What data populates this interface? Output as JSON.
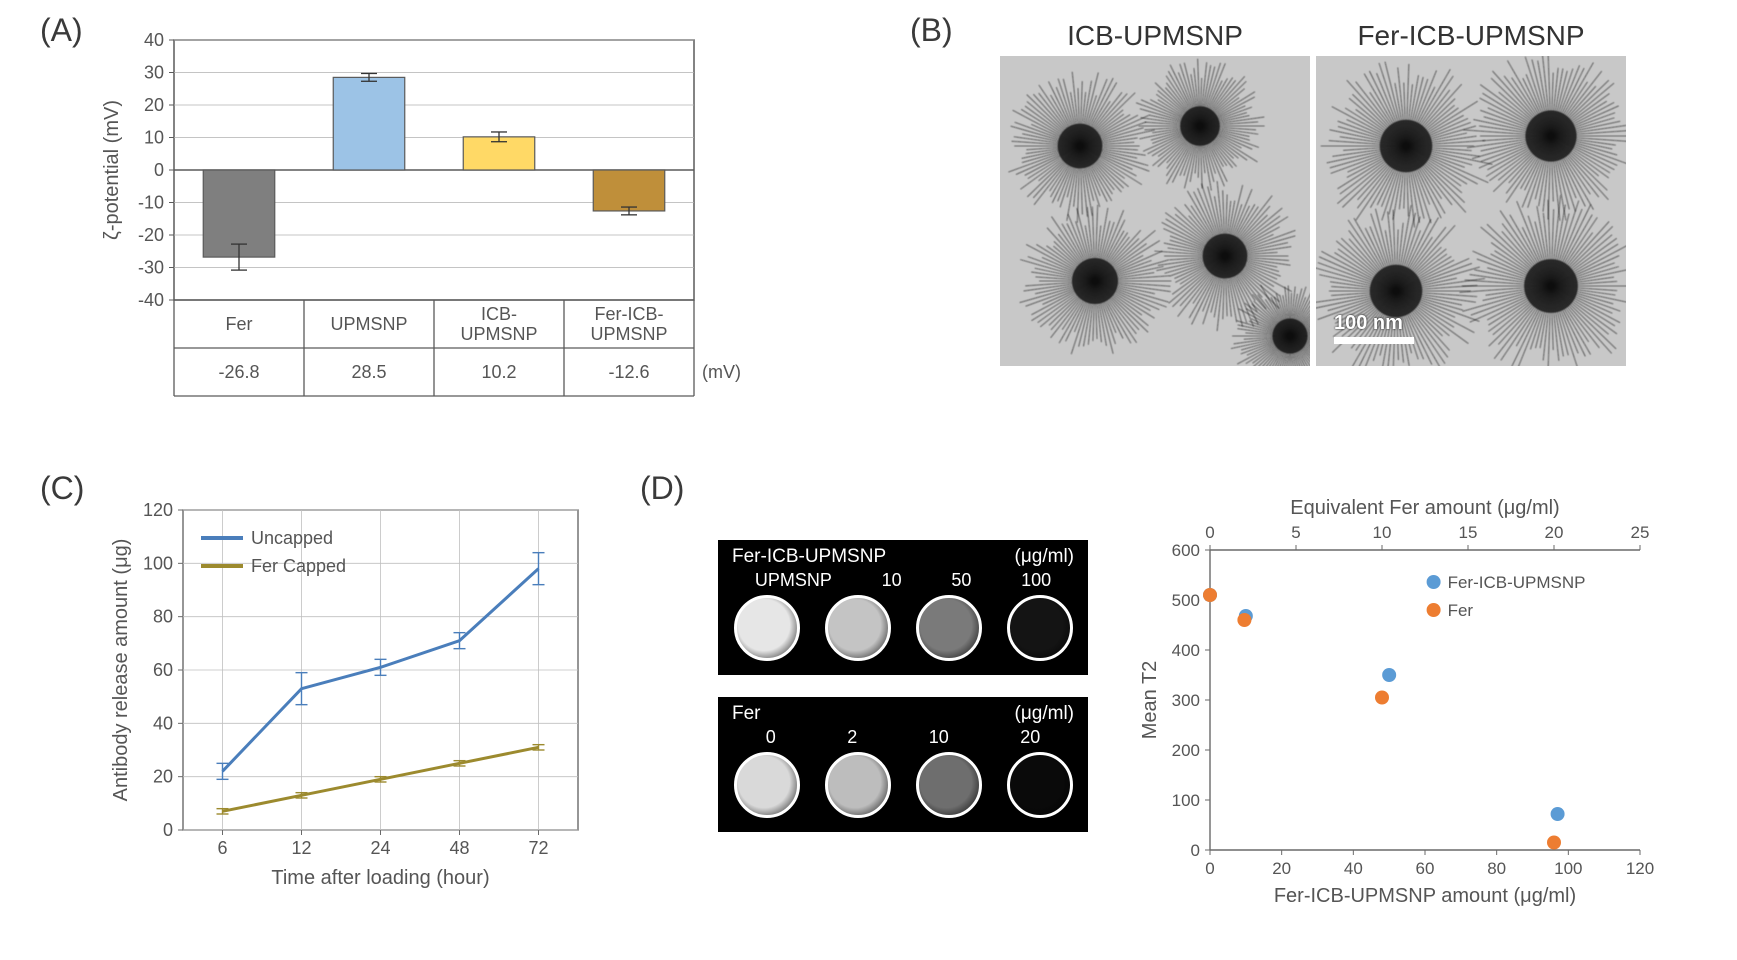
{
  "panelA": {
    "label": "(A)",
    "chart": {
      "type": "bar",
      "ylabel": "ζ-potential (mV)",
      "ylim": [
        -40,
        40
      ],
      "ytick_step": 10,
      "yticks": [
        -40,
        -30,
        -20,
        -10,
        0,
        10,
        20,
        30,
        40
      ],
      "categories": [
        "Fer",
        "UPMSNP",
        "ICB-\nUPMSNP",
        "Fer-ICB-\nUPMSNP"
      ],
      "values": [
        -26.8,
        28.5,
        10.2,
        -12.6
      ],
      "errors": [
        4,
        1.2,
        1.5,
        1.2
      ],
      "bar_colors": [
        "#7f7f7f",
        "#9cc3e6",
        "#ffd966",
        "#bf8f3a"
      ],
      "border_color": "#5a5a5a",
      "grid_color": "#b0b0b0",
      "label_fontsize": 20,
      "tick_fontsize": 18,
      "bar_width": 0.55,
      "unit_label": "(mV)",
      "value_row": [
        "-26.8",
        "28.5",
        "10.2",
        "-12.6"
      ]
    }
  },
  "panelB": {
    "label": "(B)",
    "left_title": "ICB-UPMSNP",
    "right_title": "Fer-ICB-UPMSNP",
    "scalebar_text": "100 nm",
    "background_color": "#c8c8c8"
  },
  "panelC": {
    "label": "(C)",
    "chart": {
      "type": "line",
      "xlabel": "Time after loading (hour)",
      "ylabel": "Antibody release amount (μg)",
      "x_categories": [
        "6",
        "12",
        "24",
        "48",
        "72"
      ],
      "ylim": [
        0,
        120
      ],
      "ytick_step": 20,
      "yticks": [
        0,
        20,
        40,
        60,
        80,
        100,
        120
      ],
      "series": [
        {
          "name": "Uncapped",
          "color": "#4a7ebb",
          "values": [
            22,
            53,
            61,
            71,
            98
          ],
          "errors": [
            3,
            6,
            3,
            3,
            6
          ],
          "line_width": 3
        },
        {
          "name": "Fer Capped",
          "color": "#9c8a2e",
          "values": [
            7,
            13,
            19,
            25,
            31
          ],
          "errors": [
            1,
            1,
            1,
            1,
            1
          ],
          "line_width": 3
        }
      ],
      "grid_color": "#bfbfbf",
      "label_fontsize": 20,
      "legend_pos": "top-left-inside"
    }
  },
  "panelD": {
    "label": "(D)",
    "mri": {
      "top": {
        "title": "Fer-ICB-UPMSNP",
        "unit": "(μg/ml)",
        "labels": [
          "UPMSNP",
          "10",
          "50",
          "100"
        ],
        "well_fills": [
          "#e6e6e6",
          "#c4c4c4",
          "#7a7a7a",
          "#141414"
        ]
      },
      "bottom": {
        "title": "Fer",
        "unit": "(μg/ml)",
        "labels": [
          "0",
          "2",
          "10",
          "20"
        ],
        "well_fills": [
          "#d9d9d9",
          "#bdbdbd",
          "#6e6e6e",
          "#0a0a0a"
        ]
      }
    },
    "scatter": {
      "type": "scatter",
      "top_xlabel": "Equivalent Fer amount (μg/ml)",
      "bottom_xlabel": "Fer-ICB-UPMSNP amount (μg/ml)",
      "ylabel": "Mean T2",
      "bottom_xlim": [
        0,
        120
      ],
      "bottom_xtick_step": 20,
      "top_xlim": [
        0,
        25
      ],
      "top_xtick_step": 5,
      "ylim": [
        0,
        600
      ],
      "ytick_step": 100,
      "yticks": [
        0,
        100,
        200,
        300,
        400,
        500,
        600
      ],
      "bottom_xticks": [
        0,
        20,
        40,
        60,
        80,
        100,
        120
      ],
      "top_xticks": [
        0,
        5,
        10,
        15,
        20,
        25
      ],
      "series": [
        {
          "name": "Fer-ICB-UPMSNP",
          "color": "#5b9bd5",
          "marker": "circle",
          "marker_size": 14,
          "points_bottom_x": [
            0,
            10,
            50,
            97
          ],
          "points_y": [
            510,
            468,
            350,
            72
          ]
        },
        {
          "name": "Fer",
          "color": "#ed7d31",
          "marker": "circle",
          "marker_size": 14,
          "points_bottom_x": [
            0,
            9.6,
            48,
            96
          ],
          "points_y": [
            510,
            460,
            305,
            15
          ]
        }
      ],
      "grid_color": "#d0d0d0",
      "label_fontsize": 19
    }
  }
}
